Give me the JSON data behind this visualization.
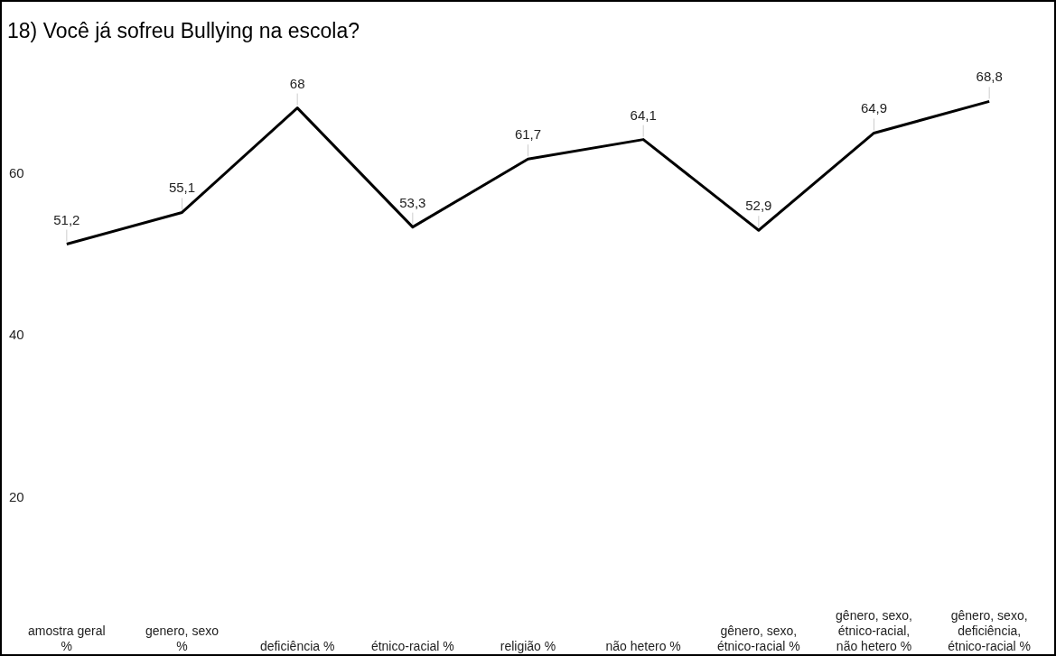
{
  "chart_data": {
    "type": "line",
    "title": "18) Você já sofreu Bullying na escola?",
    "categories": [
      "amostra geral %",
      "genero, sexo %",
      "deficiência %",
      "étnico-racial %",
      "religião %",
      "não hetero %",
      "gênero, sexo, étnico-racial %",
      "gênero, sexo, étnico-racial, não hetero %",
      "gênero, sexo, deficiência, étnico-racial %"
    ],
    "series": [
      {
        "color": "#000000",
        "values": [
          51.2,
          55.1,
          68,
          53.3,
          61.7,
          64.1,
          52.9,
          64.9,
          68.8
        ],
        "value_labels": [
          "51,2",
          "55,1",
          "68",
          "53,3",
          "61,7",
          "64,1",
          "52,9",
          "64,9",
          "68,8"
        ]
      }
    ],
    "ylim": [
      0.5,
      81.2
    ],
    "yticks": [
      20,
      40,
      60
    ],
    "grid": false,
    "marker": "none",
    "line_style": "solid"
  }
}
